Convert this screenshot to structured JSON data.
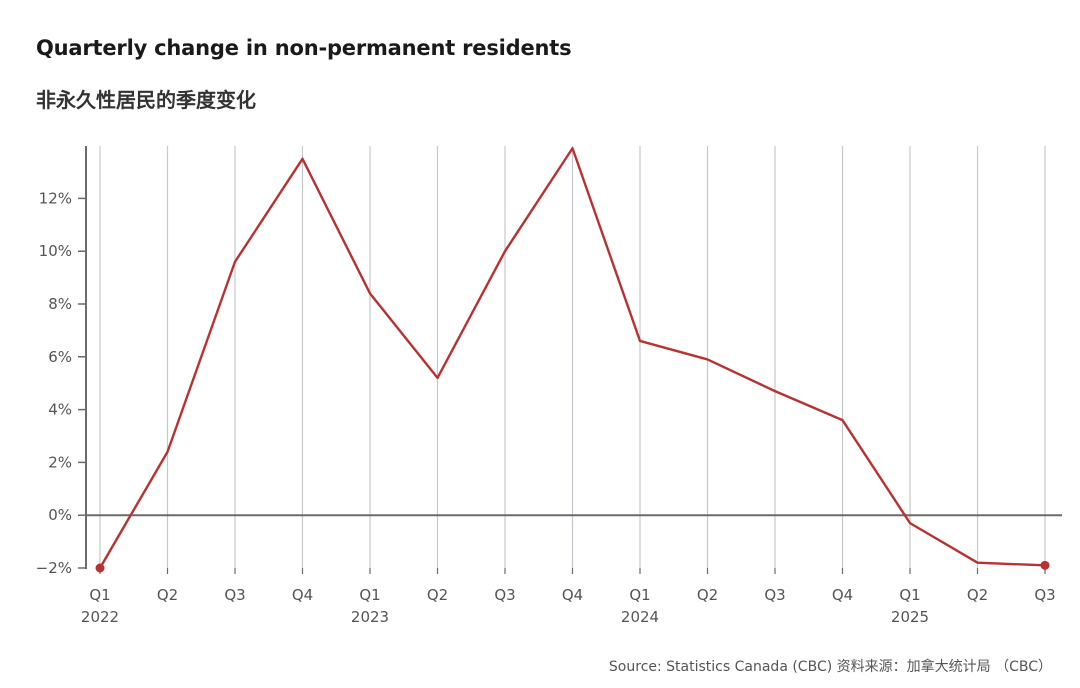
{
  "header": {
    "title": "Quarterly change in non-permanent residents",
    "subtitle": "非永久性居民的季度变化"
  },
  "footer": {
    "source": "Source: Statistics Canada (CBC)  资料来源：加拿大统计局  （CBC）"
  },
  "colors": {
    "line": "#b83232",
    "grid": "#c4c8cc",
    "axis": "#6b6b6b",
    "text": "#555555"
  },
  "chart_data": {
    "type": "line",
    "title": "Quarterly change in non-permanent residents",
    "xlabel": "",
    "ylabel": "",
    "ylim": [
      -2,
      14
    ],
    "yticks": [
      -2,
      0,
      2,
      4,
      6,
      8,
      10,
      12
    ],
    "ytick_labels": [
      "−2%",
      "0%",
      "2%",
      "4%",
      "6%",
      "8%",
      "10%",
      "12%"
    ],
    "categories": [
      "Q1",
      "Q2",
      "Q3",
      "Q4",
      "Q1",
      "Q2",
      "Q3",
      "Q4",
      "Q1",
      "Q2",
      "Q3",
      "Q4",
      "Q1",
      "Q2",
      "Q3"
    ],
    "years": [
      {
        "label": "2022",
        "index": 0
      },
      {
        "label": "2023",
        "index": 4
      },
      {
        "label": "2024",
        "index": 8
      },
      {
        "label": "2025",
        "index": 12
      }
    ],
    "series": [
      {
        "name": "Quarterly change",
        "values": [
          -2.0,
          2.4,
          9.6,
          13.5,
          8.4,
          5.2,
          10.0,
          13.9,
          6.6,
          5.9,
          4.7,
          3.6,
          -0.3,
          -1.8,
          -1.9
        ]
      }
    ],
    "markers_on": [
      0,
      14
    ],
    "grid": true,
    "legend": "none"
  }
}
